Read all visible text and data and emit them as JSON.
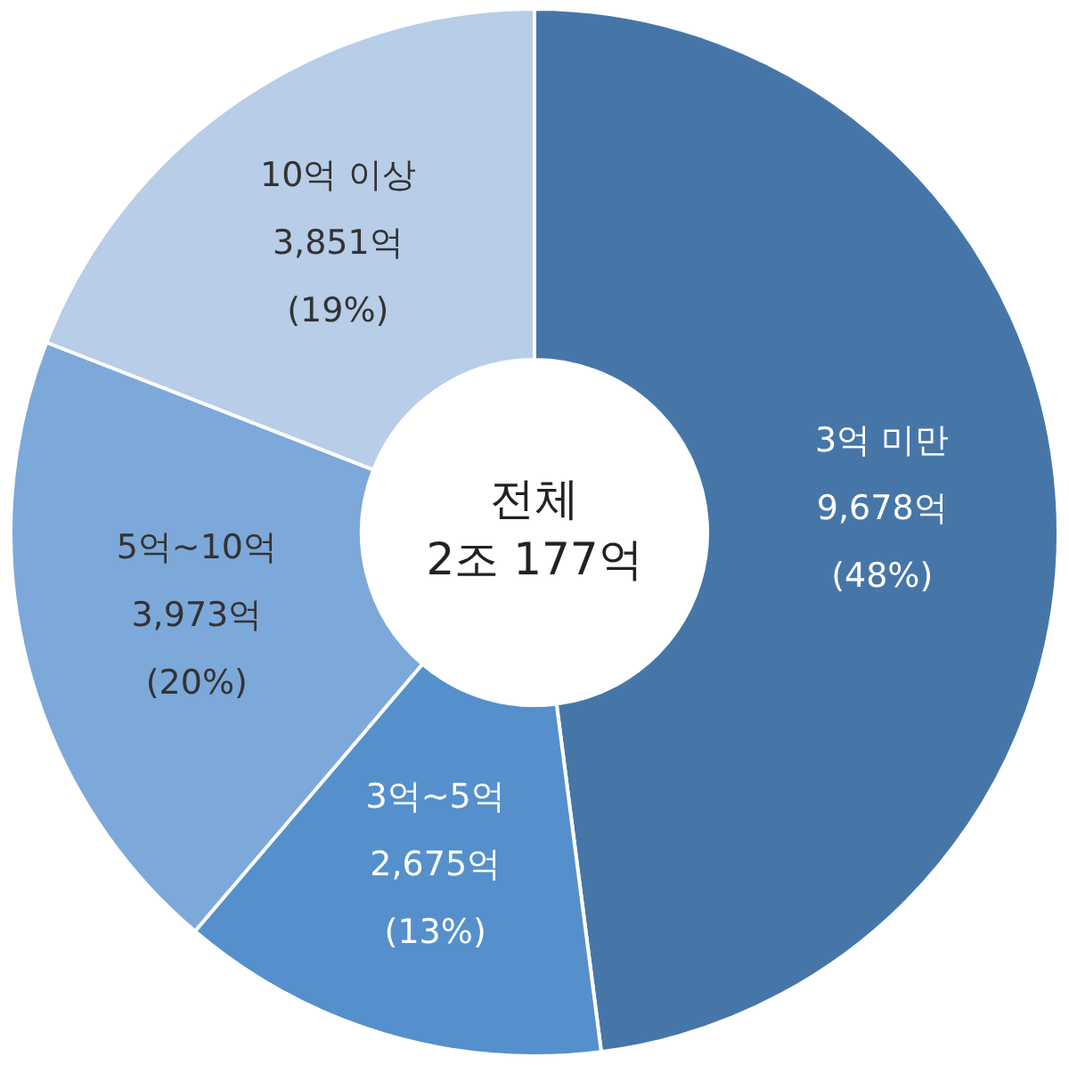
{
  "chart_data": {
    "type": "donut",
    "categories": [
      "3억 미만",
      "3억~5억",
      "5억~10억",
      "10억 이상"
    ],
    "values": [
      9678,
      2675,
      3973,
      3851
    ],
    "colors": [
      "#4676a8",
      "#5590cc",
      "#7da8da",
      "#b7cde8"
    ],
    "value_labels": [
      "9,678억\n(48%)",
      "2,675억\n(13%)",
      "3,973억\n(20%)",
      "3,851억\n(19%)"
    ],
    "annotations": [
      "전체\n2조 177억"
    ],
    "legend": false
  }
}
